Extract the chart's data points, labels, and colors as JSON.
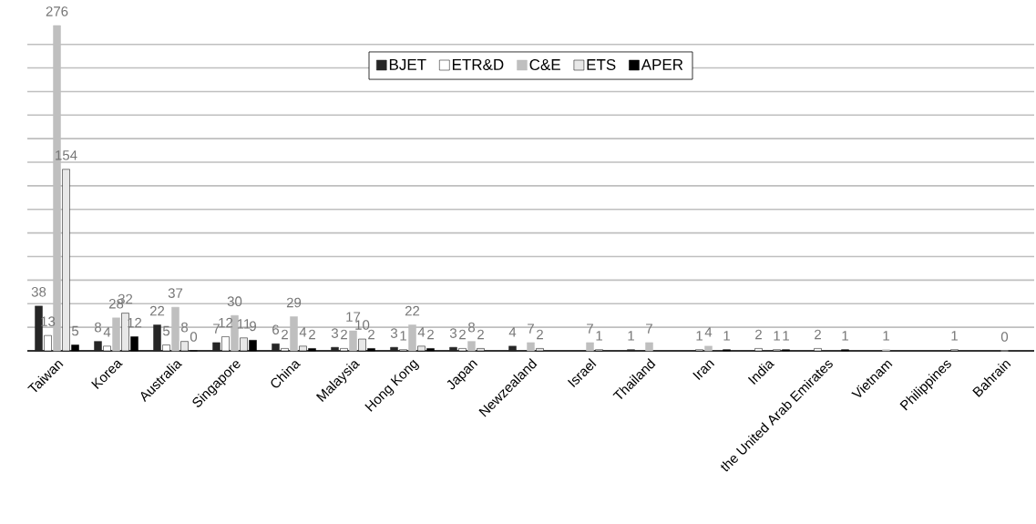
{
  "chart_data": {
    "type": "bar",
    "categories": [
      "Taiwan",
      "Korea",
      "Australia",
      "Singapore",
      "China",
      "Malaysia",
      "Hong Kong",
      "Japan",
      "Newzealand",
      "Israel",
      "Thailand",
      "Iran",
      "India",
      "the United Arab Emirates",
      "Vietnam",
      "Philippines",
      "Bahrain"
    ],
    "series": [
      {
        "name": "BJET",
        "color": "#262626",
        "values": [
          38,
          8,
          22,
          7,
          6,
          3,
          3,
          3,
          4,
          null,
          1,
          null,
          null,
          null,
          null,
          null,
          null
        ]
      },
      {
        "name": "ETR&D",
        "color": "#ffffff",
        "values": [
          13,
          4,
          5,
          12,
          2,
          2,
          1,
          2,
          null,
          null,
          null,
          1,
          2,
          2,
          null,
          null,
          null
        ]
      },
      {
        "name": "C&E",
        "color": "#bfbfbf",
        "values": [
          276,
          28,
          37,
          30,
          29,
          17,
          22,
          8,
          7,
          7,
          7,
          4,
          null,
          null,
          1,
          null,
          0
        ]
      },
      {
        "name": "ETS",
        "color": "#e8e8e8",
        "values": [
          154,
          32,
          8,
          11,
          4,
          10,
          4,
          2,
          2,
          1,
          null,
          null,
          1,
          null,
          null,
          1,
          null
        ]
      },
      {
        "name": "APER",
        "color": "#000000",
        "values": [
          5,
          12,
          0,
          9,
          2,
          2,
          2,
          null,
          null,
          null,
          null,
          1,
          1,
          1,
          null,
          null,
          null
        ]
      }
    ],
    "grid": "y",
    "legend": "top",
    "tick_labels": "x",
    "data_labels": true
  }
}
